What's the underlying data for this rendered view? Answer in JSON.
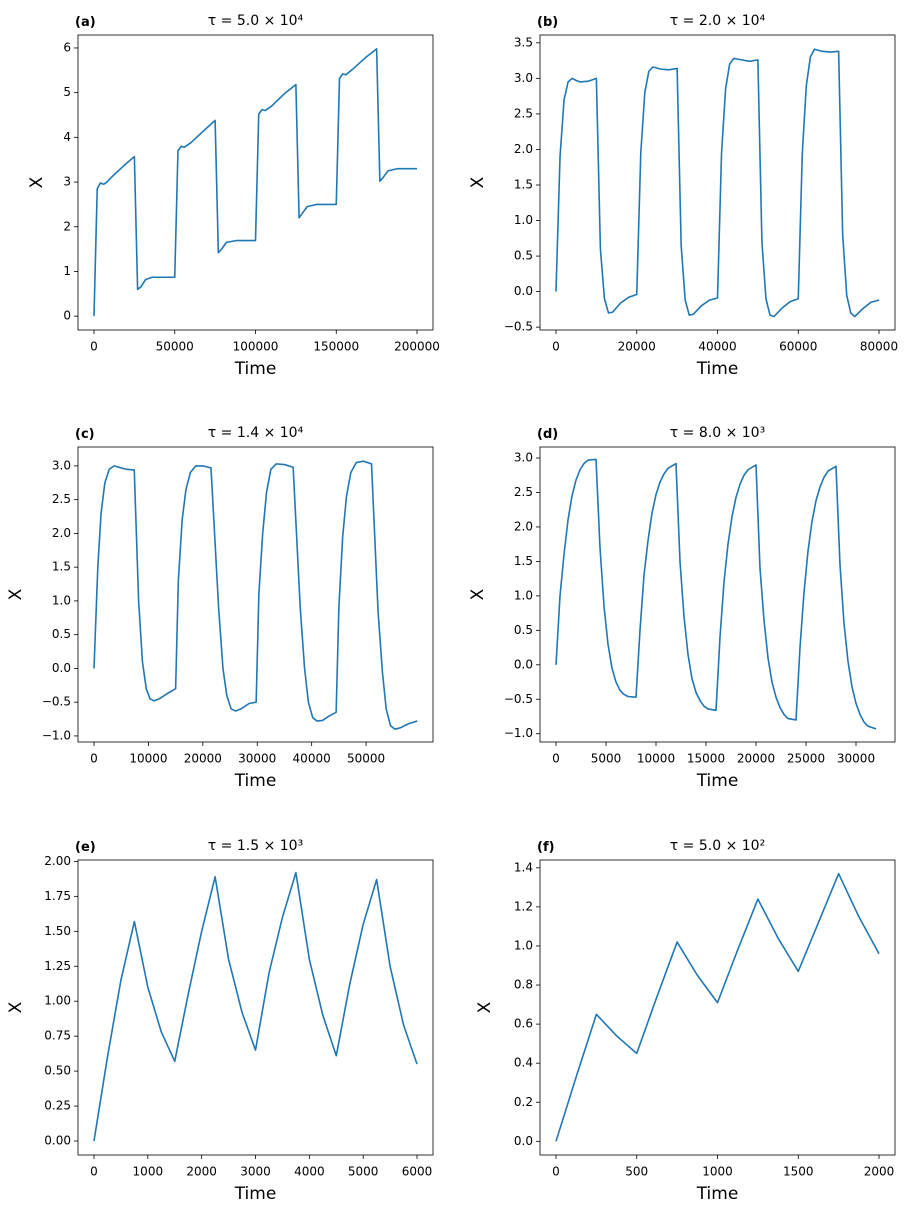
{
  "chart_data": [
    {
      "type": "line",
      "panel_label": "(a)",
      "title": "τ = 5.0 × 10⁴",
      "x_label": "Time",
      "y_label": "X",
      "color": "#1f77b4",
      "x": [
        0,
        2000,
        4000,
        6000,
        8000,
        12000,
        18000,
        25000,
        27000,
        29000,
        32000,
        36000,
        50000,
        52000,
        54000,
        56000,
        60000,
        68000,
        75000,
        77000,
        79000,
        82000,
        88000,
        100000,
        102000,
        104000,
        106000,
        110000,
        118000,
        125000,
        127000,
        129000,
        132000,
        138000,
        150000,
        152000,
        154000,
        156000,
        160000,
        168000,
        175000,
        177000,
        179000,
        182000,
        188000,
        200000
      ],
      "values": [
        0,
        2.85,
        2.98,
        2.95,
        3.0,
        3.15,
        3.35,
        3.57,
        0.6,
        0.65,
        0.82,
        0.87,
        0.87,
        3.7,
        3.8,
        3.78,
        3.88,
        4.15,
        4.38,
        1.42,
        1.5,
        1.65,
        1.69,
        1.69,
        4.52,
        4.62,
        4.6,
        4.7,
        4.98,
        5.18,
        2.2,
        2.3,
        2.45,
        2.5,
        2.5,
        5.32,
        5.42,
        5.4,
        5.52,
        5.78,
        5.98,
        3.02,
        3.1,
        3.25,
        3.3,
        3.3
      ],
      "xlim": [
        -9900,
        209900
      ],
      "xticks": [
        0,
        50000,
        100000,
        150000,
        200000
      ],
      "ylim": [
        -0.31,
        6.29
      ],
      "yticks": [
        0,
        1,
        2,
        3,
        4,
        5,
        6
      ]
    },
    {
      "type": "line",
      "panel_label": "(b)",
      "title": "τ = 2.0 × 10⁴",
      "x_label": "Time",
      "y_label": "X",
      "color": "#1f77b4",
      "x": [
        0,
        1000,
        2000,
        3000,
        4000,
        5000,
        6000,
        8000,
        10000,
        11000,
        12000,
        13000,
        14000,
        16000,
        18000,
        20000,
        21000,
        22000,
        23000,
        24000,
        26000,
        28000,
        30000,
        31000,
        32000,
        33000,
        34000,
        36000,
        38000,
        40000,
        41000,
        42000,
        43000,
        44000,
        46000,
        48000,
        50000,
        51000,
        52000,
        53000,
        54000,
        56000,
        58000,
        60000,
        61000,
        62000,
        63000,
        64000,
        66000,
        68000,
        70000,
        71000,
        72000,
        73000,
        74000,
        76000,
        78000,
        80000
      ],
      "values": [
        0,
        1.9,
        2.7,
        2.95,
        3.0,
        2.97,
        2.95,
        2.96,
        3.0,
        0.6,
        -0.1,
        -0.3,
        -0.29,
        -0.16,
        -0.08,
        -0.04,
        1.95,
        2.8,
        3.1,
        3.16,
        3.13,
        3.12,
        3.14,
        0.65,
        -0.12,
        -0.33,
        -0.32,
        -0.2,
        -0.12,
        -0.09,
        1.95,
        2.85,
        3.2,
        3.28,
        3.26,
        3.24,
        3.26,
        0.7,
        -0.1,
        -0.33,
        -0.35,
        -0.23,
        -0.14,
        -0.1,
        1.95,
        2.9,
        3.3,
        3.41,
        3.38,
        3.37,
        3.38,
        0.8,
        -0.05,
        -0.3,
        -0.35,
        -0.24,
        -0.15,
        -0.12
      ],
      "xlim": [
        -3960,
        83960
      ],
      "xticks": [
        0,
        20000,
        40000,
        60000,
        80000
      ],
      "ylim": [
        -0.54,
        3.61
      ],
      "yticks": [
        {
          "value": -0.5,
          "label": "−0.5"
        },
        {
          "value": 0,
          "label": "0.0"
        },
        0.5,
        {
          "value": 1,
          "label": "1.0"
        },
        1.5,
        {
          "value": 2,
          "label": "2.0"
        },
        2.5,
        {
          "value": 3,
          "label": "3.0"
        },
        3.5
      ]
    },
    {
      "type": "line",
      "panel_label": "(c)",
      "title": "τ = 1.4 × 10⁴",
      "x_label": "Time",
      "y_label": "X",
      "color": "#1f77b4",
      "x": [
        0,
        700,
        1300,
        2000,
        2800,
        3700,
        5000,
        6000,
        7400,
        8200,
        8900,
        9600,
        10300,
        11000,
        12000,
        13500,
        15000,
        15500,
        16200,
        16900,
        17700,
        18700,
        20000,
        21500,
        22900,
        23700,
        24400,
        25200,
        26000,
        27000,
        28500,
        29800,
        30300,
        31000,
        31700,
        32500,
        33500,
        35000,
        36600,
        37900,
        38700,
        39400,
        40200,
        41000,
        42000,
        43300,
        44500,
        45000,
        45700,
        46400,
        47200,
        48200,
        49500,
        51000,
        52200,
        53000,
        53700,
        54500,
        55300,
        56300,
        57800,
        59400
      ],
      "values": [
        0,
        1.5,
        2.3,
        2.75,
        2.95,
        3.0,
        2.97,
        2.95,
        2.94,
        1.0,
        0.1,
        -0.3,
        -0.45,
        -0.48,
        -0.45,
        -0.37,
        -0.3,
        1.3,
        2.2,
        2.65,
        2.9,
        3.0,
        3.0,
        2.97,
        0.9,
        0.0,
        -0.4,
        -0.6,
        -0.63,
        -0.6,
        -0.52,
        -0.5,
        1.1,
        2.0,
        2.6,
        2.95,
        3.03,
        3.02,
        2.98,
        0.9,
        0.0,
        -0.5,
        -0.73,
        -0.78,
        -0.77,
        -0.7,
        -0.65,
        0.9,
        1.95,
        2.55,
        2.9,
        3.05,
        3.07,
        3.03,
        0.85,
        -0.05,
        -0.6,
        -0.85,
        -0.9,
        -0.88,
        -0.82,
        -0.78
      ],
      "xlim": [
        -2940,
        62300
      ],
      "xticks": [
        0,
        10000,
        20000,
        30000,
        40000,
        50000
      ],
      "ylim": [
        -1.09,
        3.28
      ],
      "yticks": [
        {
          "value": -1,
          "label": "−1.0"
        },
        {
          "value": -0.5,
          "label": "−0.5"
        },
        {
          "value": 0,
          "label": "0.0"
        },
        0.5,
        {
          "value": 1,
          "label": "1.0"
        },
        1.5,
        {
          "value": 2,
          "label": "2.0"
        },
        2.5,
        {
          "value": 3,
          "label": "3.0"
        }
      ]
    },
    {
      "type": "line",
      "panel_label": "(d)",
      "title": "τ = 8.0 × 10³",
      "x_label": "Time",
      "y_label": "X",
      "color": "#1f77b4",
      "x": [
        0,
        400,
        800,
        1200,
        1600,
        2000,
        2400,
        2800,
        3200,
        4000,
        4400,
        4800,
        5200,
        5600,
        6000,
        6400,
        6800,
        7200,
        8000,
        8400,
        8800,
        9200,
        9600,
        10000,
        10400,
        10800,
        11200,
        12000,
        12400,
        12800,
        13200,
        13600,
        14000,
        14400,
        14800,
        15200,
        16000,
        16400,
        16800,
        17200,
        17600,
        18000,
        18400,
        18800,
        19200,
        20000,
        20400,
        20800,
        21200,
        21600,
        22000,
        22400,
        22800,
        23200,
        24000,
        24400,
        24800,
        25200,
        25600,
        26000,
        26400,
        26800,
        27200,
        28000,
        28400,
        28800,
        29200,
        29600,
        30000,
        30400,
        30800,
        31200,
        32000
      ],
      "values": [
        0,
        1.0,
        1.6,
        2.1,
        2.45,
        2.68,
        2.83,
        2.92,
        2.97,
        2.98,
        1.7,
        0.85,
        0.3,
        -0.05,
        -0.25,
        -0.37,
        -0.43,
        -0.46,
        -0.47,
        0.5,
        1.3,
        1.8,
        2.2,
        2.47,
        2.65,
        2.77,
        2.85,
        2.92,
        1.5,
        0.7,
        0.15,
        -0.2,
        -0.4,
        -0.52,
        -0.6,
        -0.64,
        -0.66,
        0.4,
        1.2,
        1.75,
        2.15,
        2.43,
        2.62,
        2.75,
        2.83,
        2.9,
        1.4,
        0.65,
        0.1,
        -0.25,
        -0.47,
        -0.62,
        -0.72,
        -0.78,
        -0.8,
        0.25,
        1.05,
        1.65,
        2.08,
        2.38,
        2.58,
        2.72,
        2.81,
        2.88,
        1.45,
        0.6,
        0.05,
        -0.32,
        -0.56,
        -0.72,
        -0.83,
        -0.89,
        -0.93
      ],
      "xlim": [
        -1600,
        33900
      ],
      "xticks": [
        0,
        5000,
        10000,
        15000,
        20000,
        25000,
        30000
      ],
      "ylim": [
        -1.12,
        3.16
      ],
      "yticks": [
        {
          "value": -1,
          "label": "−1.0"
        },
        {
          "value": -0.5,
          "label": "−0.5"
        },
        {
          "value": 0,
          "label": "0.0"
        },
        0.5,
        {
          "value": 1,
          "label": "1.0"
        },
        1.5,
        {
          "value": 2,
          "label": "2.0"
        },
        2.5,
        {
          "value": 3,
          "label": "3.0"
        }
      ]
    },
    {
      "type": "line",
      "panel_label": "(e)",
      "title": "τ = 1.5 × 10³",
      "x_label": "Time",
      "y_label": "X",
      "color": "#1f77b4",
      "x": [
        0,
        250,
        500,
        750,
        1000,
        1250,
        1500,
        1750,
        2000,
        2250,
        2500,
        2750,
        3000,
        3250,
        3500,
        3750,
        4000,
        4250,
        4500,
        4750,
        5000,
        5250,
        5500,
        5750,
        6000
      ],
      "values": [
        0,
        0.6,
        1.15,
        1.57,
        1.1,
        0.78,
        0.57,
        1.05,
        1.5,
        1.89,
        1.3,
        0.92,
        0.65,
        1.2,
        1.6,
        1.92,
        1.3,
        0.9,
        0.61,
        1.12,
        1.55,
        1.87,
        1.25,
        0.83,
        0.55
      ],
      "xlim": [
        -297,
        6297
      ],
      "xticks": [
        0,
        1000,
        2000,
        3000,
        4000,
        5000,
        6000
      ],
      "ylim": [
        -0.1,
        2.01
      ],
      "yticks": [
        {
          "value": 0,
          "label": "0.00"
        },
        0.25,
        {
          "value": 0.5,
          "label": "0.50"
        },
        0.75,
        {
          "value": 1,
          "label": "1.00"
        },
        1.25,
        {
          "value": 1.5,
          "label": "1.50"
        },
        1.75,
        {
          "value": 2,
          "label": "2.00"
        }
      ]
    },
    {
      "type": "line",
      "panel_label": "(f)",
      "title": "τ = 5.0 × 10²",
      "x_label": "Time",
      "y_label": "X",
      "color": "#1f77b4",
      "x": [
        0,
        125,
        250,
        375,
        500,
        625,
        750,
        875,
        1000,
        1125,
        1250,
        1375,
        1500,
        1625,
        1750,
        1875,
        2000
      ],
      "values": [
        0,
        0.33,
        0.65,
        0.54,
        0.45,
        0.74,
        1.02,
        0.85,
        0.71,
        0.98,
        1.24,
        1.04,
        0.87,
        1.12,
        1.37,
        1.15,
        0.96
      ],
      "xlim": [
        -99,
        2099
      ],
      "xticks": [
        0,
        500,
        1000,
        1500,
        2000
      ],
      "ylim": [
        -0.07,
        1.44
      ],
      "yticks": [
        {
          "value": 0,
          "label": "0.0"
        },
        0.2,
        0.4,
        0.6,
        0.8,
        {
          "value": 1,
          "label": "1.0"
        },
        1.2,
        1.4
      ]
    }
  ]
}
